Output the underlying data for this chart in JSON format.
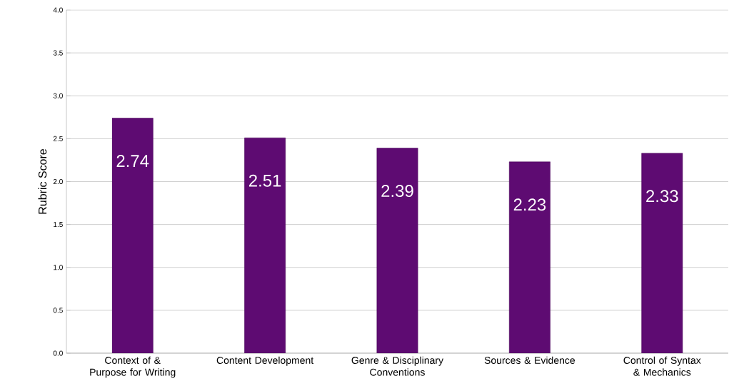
{
  "chart_data": {
    "type": "bar",
    "ylabel": "Rubric Score",
    "categories": [
      "Context of & Purpose for Writing",
      "Content Development",
      "Genre & Disciplinary Conventions",
      "Sources & Evidence",
      "Control of Syntax & Mechanics"
    ],
    "values": [
      2.74,
      2.51,
      2.39,
      2.23,
      2.33
    ],
    "color": "#5e0b72",
    "ylim": [
      0,
      4
    ],
    "yticks": [
      {
        "value": 0,
        "label": "0.0"
      },
      {
        "value": 0.5,
        "label": "0.5"
      },
      {
        "value": 1,
        "label": "1.0"
      },
      {
        "value": 1.5,
        "label": "1.5"
      },
      {
        "value": 2,
        "label": "2.0"
      },
      {
        "value": 2.5,
        "label": "2.5"
      },
      {
        "value": 3,
        "label": "3.0"
      },
      {
        "value": 3.5,
        "label": "3.5"
      },
      {
        "value": 4,
        "label": "4.0"
      }
    ],
    "grid": "y",
    "data_labels": true
  }
}
